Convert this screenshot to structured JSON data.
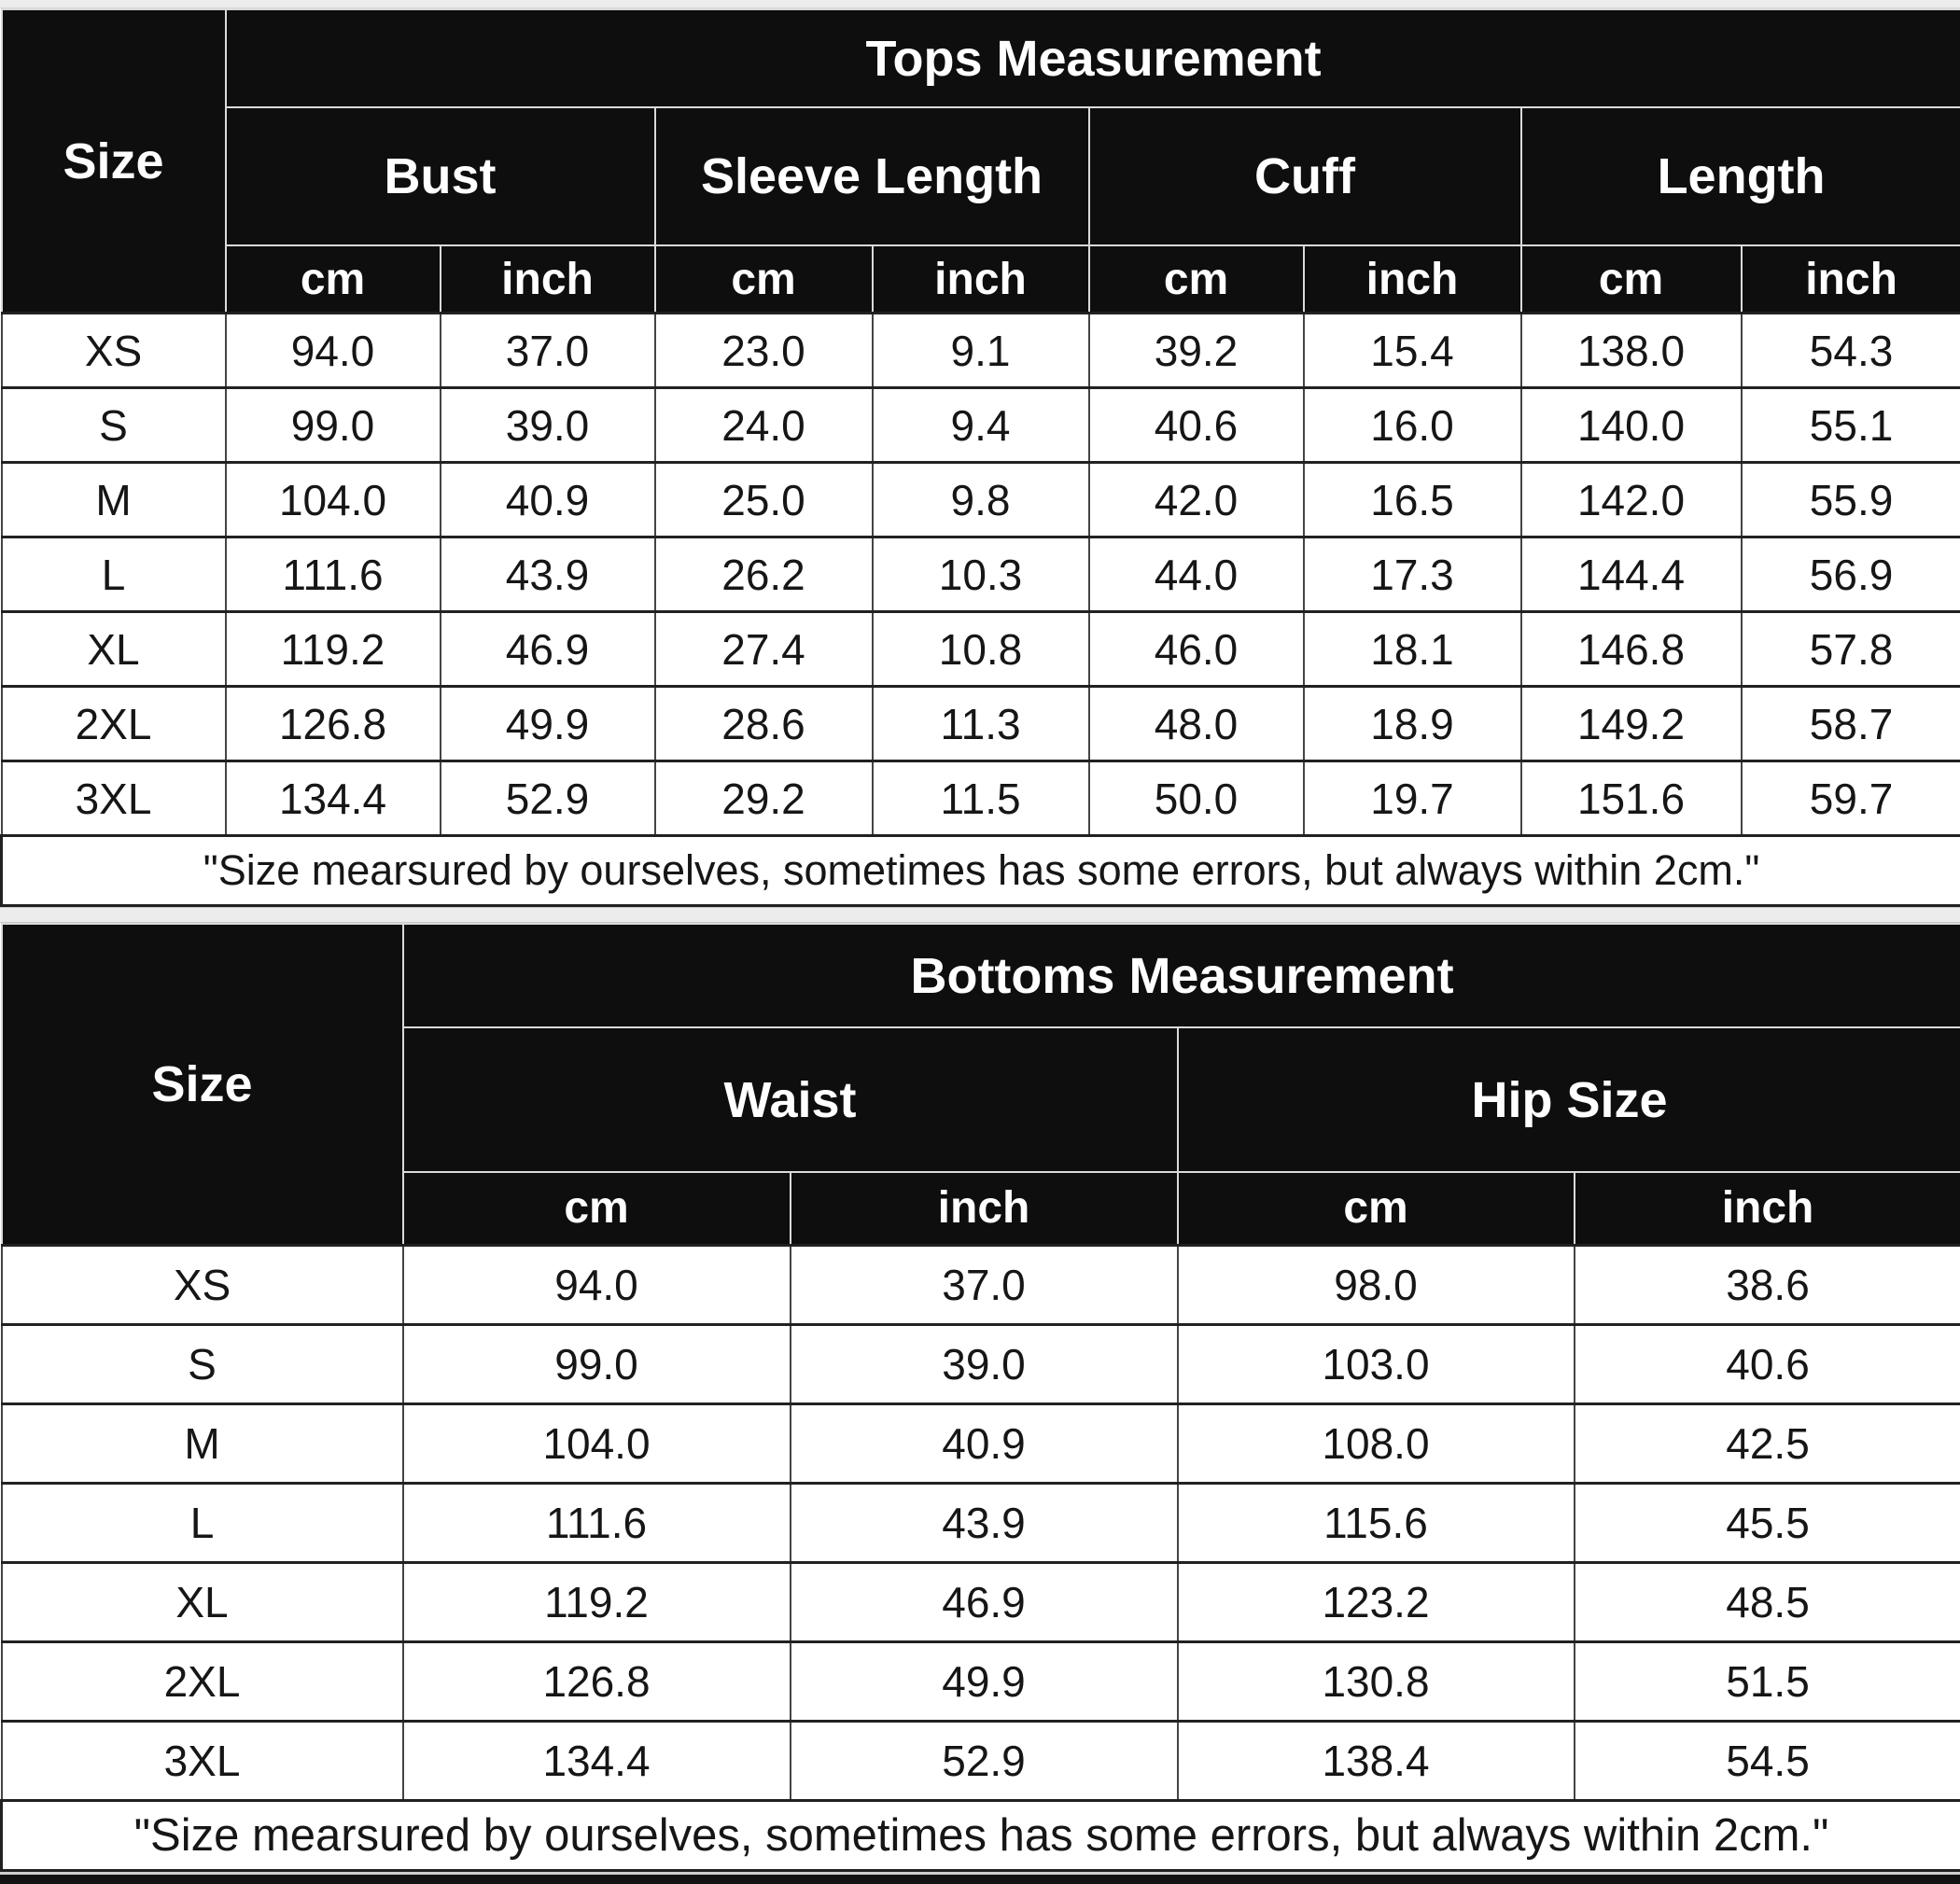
{
  "tops_table": {
    "title": "Tops Measurement",
    "size_label": "Size",
    "groups": [
      "Bust",
      "Sleeve Length",
      "Cuff",
      "Length"
    ],
    "units": [
      "cm",
      "inch",
      "cm",
      "inch",
      "cm",
      "inch",
      "cm",
      "inch"
    ],
    "rows": [
      {
        "size": "XS",
        "values": [
          "94.0",
          "37.0",
          "23.0",
          "9.1",
          "39.2",
          "15.4",
          "138.0",
          "54.3"
        ]
      },
      {
        "size": "S",
        "values": [
          "99.0",
          "39.0",
          "24.0",
          "9.4",
          "40.6",
          "16.0",
          "140.0",
          "55.1"
        ]
      },
      {
        "size": "M",
        "values": [
          "104.0",
          "40.9",
          "25.0",
          "9.8",
          "42.0",
          "16.5",
          "142.0",
          "55.9"
        ]
      },
      {
        "size": "L",
        "values": [
          "111.6",
          "43.9",
          "26.2",
          "10.3",
          "44.0",
          "17.3",
          "144.4",
          "56.9"
        ]
      },
      {
        "size": "XL",
        "values": [
          "119.2",
          "46.9",
          "27.4",
          "10.8",
          "46.0",
          "18.1",
          "146.8",
          "57.8"
        ]
      },
      {
        "size": "2XL",
        "values": [
          "126.8",
          "49.9",
          "28.6",
          "11.3",
          "48.0",
          "18.9",
          "149.2",
          "58.7"
        ]
      },
      {
        "size": "3XL",
        "values": [
          "134.4",
          "52.9",
          "29.2",
          "11.5",
          "50.0",
          "19.7",
          "151.6",
          "59.7"
        ]
      }
    ],
    "note": "\"Size mearsured by ourselves, sometimes has some errors, but always within 2cm.\""
  },
  "bottoms_table": {
    "title": "Bottoms Measurement",
    "size_label": "Size",
    "groups": [
      "Waist",
      "Hip Size"
    ],
    "units": [
      "cm",
      "inch",
      "cm",
      "inch"
    ],
    "rows": [
      {
        "size": "XS",
        "values": [
          "94.0",
          "37.0",
          "98.0",
          "38.6"
        ]
      },
      {
        "size": "S",
        "values": [
          "99.0",
          "39.0",
          "103.0",
          "40.6"
        ]
      },
      {
        "size": "M",
        "values": [
          "104.0",
          "40.9",
          "108.0",
          "42.5"
        ]
      },
      {
        "size": "L",
        "values": [
          "111.6",
          "43.9",
          "115.6",
          "45.5"
        ]
      },
      {
        "size": "XL",
        "values": [
          "119.2",
          "46.9",
          "123.2",
          "48.5"
        ]
      },
      {
        "size": "2XL",
        "values": [
          "126.8",
          "49.9",
          "130.8",
          "51.5"
        ]
      },
      {
        "size": "3XL",
        "values": [
          "134.4",
          "52.9",
          "138.4",
          "54.5"
        ]
      }
    ],
    "note": "\"Size mearsured by ourselves, sometimes has some errors, but always within 2cm.\""
  },
  "colors": {
    "header_bg": "#0e0e0e",
    "header_text": "#ffffff",
    "body_text": "#161616",
    "grid_light": "#ececec",
    "row_line": "#212121"
  }
}
